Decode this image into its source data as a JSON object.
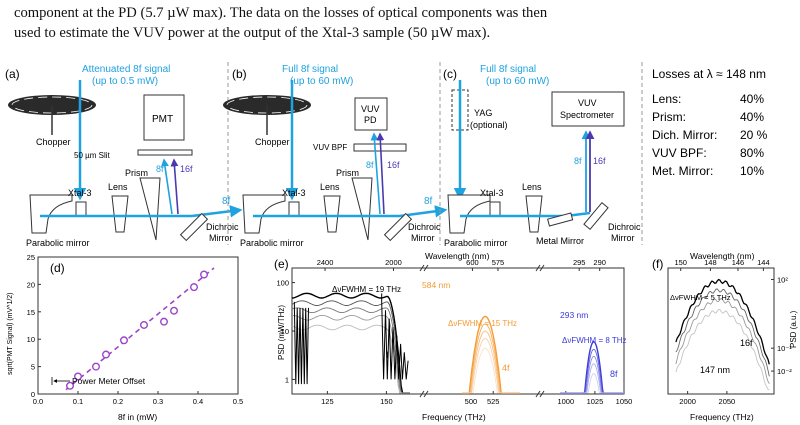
{
  "paragraph": {
    "line1": "component at the PD (5.7 µW max). The data on the losses of optical components was then",
    "line2": "used to estimate the VUV power at the output of the Xtal-3 sample (50 µW max)."
  },
  "panel_a": {
    "letter": "(a)",
    "sig1": "Attenuated 8f signal",
    "sig2": "(up to 0.5 mW)",
    "chopper": "Chopper",
    "detector": "PMT",
    "slit": "50 µm Slit",
    "b8f": "8f",
    "b16f": "16f",
    "prism": "Prism",
    "xtal": "Xtal-3",
    "lens": "Lens",
    "out8f": "8f",
    "dich1": "Dichroic",
    "dich2": "Mirror",
    "parabolic": "Parabolic mirror"
  },
  "panel_b": {
    "letter": "(b)",
    "sig1": "Full 8f signal",
    "sig2": "(up to 60 mW)",
    "chopper": "Chopper",
    "det1": "VUV",
    "det2": "PD",
    "bpf": "VUV BPF",
    "b8f": "8f",
    "b16f": "16f",
    "prism": "Prism",
    "xtal": "Xtal-3",
    "lens": "Lens",
    "out8f": "8f",
    "dich1": "Dichroic",
    "dich2": "Mirror",
    "parabolic": "Parabolic mirror"
  },
  "panel_c": {
    "letter": "(c)",
    "sig1": "Full 8f signal",
    "sig2": "(up to 60 mW)",
    "yag1": "YAG",
    "yag2": "(optional)",
    "spec1": "VUV",
    "spec2": "Spectrometer",
    "b8f": "8f",
    "b16f": "16f",
    "xtal": "Xtal-3",
    "lens": "Lens",
    "metal": "Metal Mirror",
    "dich1": "Dichroic",
    "dich2": "Mirror",
    "parabolic": "Parabolic mirror"
  },
  "losses": {
    "title": "Losses at λ ≈ 148 nm",
    "items": [
      {
        "name": "Lens:",
        "value": "40%"
      },
      {
        "name": "Prism:",
        "value": "40%"
      },
      {
        "name": "Dich. Mirror:",
        "value": "20 %"
      },
      {
        "name": "VUV BPF:",
        "value": "80%"
      },
      {
        "name": "Met. Mirror:",
        "value": "10%"
      }
    ]
  },
  "panel_d": {
    "letter": "(d)",
    "annotation": "Power Meter Offset",
    "xticks": [
      "0.0",
      "0.1",
      "0.2",
      "0.3",
      "0.4",
      "0.5"
    ],
    "yticks": [
      "0",
      "5",
      "10",
      "15",
      "20",
      "25"
    ]
  },
  "panel_e": {
    "letter": "(e)",
    "ann19": "ΔνFWHM = 19 THz",
    "ann15": "ΔνFWHM = 15 THz",
    "ann8": "ΔνFWHM = 8 THz",
    "nm584": "584 nm",
    "nm293": "293 nm",
    "lab_f": "f",
    "lab_4f": "4f",
    "lab_8f": "8f",
    "wl_ticks": [
      "2400",
      "2000",
      "600",
      "575",
      "295",
      "290"
    ],
    "fr_ticks": [
      "125",
      "150",
      "500",
      "525",
      "1000",
      "1025",
      "1050"
    ],
    "y_ticks": [
      "1",
      "10",
      "100"
    ]
  },
  "panel_f": {
    "letter": "(f)",
    "ann5": "ΔνFWHM = 5 THz",
    "lab_16f": "16f",
    "nm147": "147 nm",
    "wl_ticks": [
      "150",
      "148",
      "146",
      "144"
    ],
    "fr_ticks": [
      "2000",
      "2050"
    ],
    "y_ticks": [
      "10²",
      "10⁻¹",
      "10⁻²"
    ]
  },
  "chart_data": [
    {
      "type": "scatter",
      "title": "",
      "xlabel": "8f in (mW)",
      "ylabel": "sqrt(PMT Signal) (mV^1/2)",
      "xlim": [
        0,
        0.5
      ],
      "ylim": [
        0,
        25
      ],
      "series": [
        {
          "x": [
            0.08,
            0.1,
            0.145,
            0.17,
            0.215,
            0.265,
            0.315,
            0.34,
            0.39,
            0.415
          ],
          "y": [
            1.5,
            3.2,
            5.0,
            7.2,
            9.8,
            12.6,
            13.2,
            15.2,
            19.5,
            21.8
          ]
        }
      ],
      "fit": {
        "x": [
          0.07,
          0.44
        ],
        "y": [
          0.8,
          23.0
        ]
      },
      "offset_x": 0.07
    },
    {
      "type": "line",
      "title": "",
      "xlabel": "Frequency (THz)",
      "x2label": "Wavelength (nm)",
      "ylabel": "PSD (mW/THz)",
      "yscale": "log",
      "ylim": [
        0.5,
        200
      ],
      "segments": [
        {
          "label": "f",
          "color": "#000000",
          "xlim": [
            110,
            160
          ],
          "center": 132,
          "width": 19,
          "peak": 60
        },
        {
          "label": "4f",
          "color": "#f39c34",
          "xlim": [
            490,
            555
          ],
          "center": 516,
          "width": 15,
          "peak": 20
        },
        {
          "label": "8f",
          "color": "#3b3bd9",
          "xlim": [
            995,
            1050
          ],
          "center": 1024,
          "width": 8,
          "peak": 6
        }
      ]
    },
    {
      "type": "line",
      "title": "",
      "xlabel": "Frequency (THz)",
      "x2label": "Wavelength (nm)",
      "ylabel": "PSD (a.u.)",
      "yscale": "log",
      "series": [
        {
          "label": "16f",
          "center": 2040,
          "width": 5,
          "peak": 100
        }
      ]
    }
  ],
  "axis_titles": {
    "d_x": "8f in (mW)",
    "d_y": "sqrt(PMT Signal) (mV^1/2)",
    "e_x": "Frequency (THz)",
    "e_top": "Wavelength (nm)",
    "e_y": "PSD (mW/THz)",
    "f_x": "Frequency (THz)",
    "f_top": "Wavelength (nm)",
    "f_y": "PSD (a.u.)"
  },
  "colors": {
    "beam": "#1fa2e0",
    "harm": "#4a3ab0",
    "orange": "#f39c34",
    "blue": "#3b3bd9",
    "fit": "#9b45c9"
  }
}
